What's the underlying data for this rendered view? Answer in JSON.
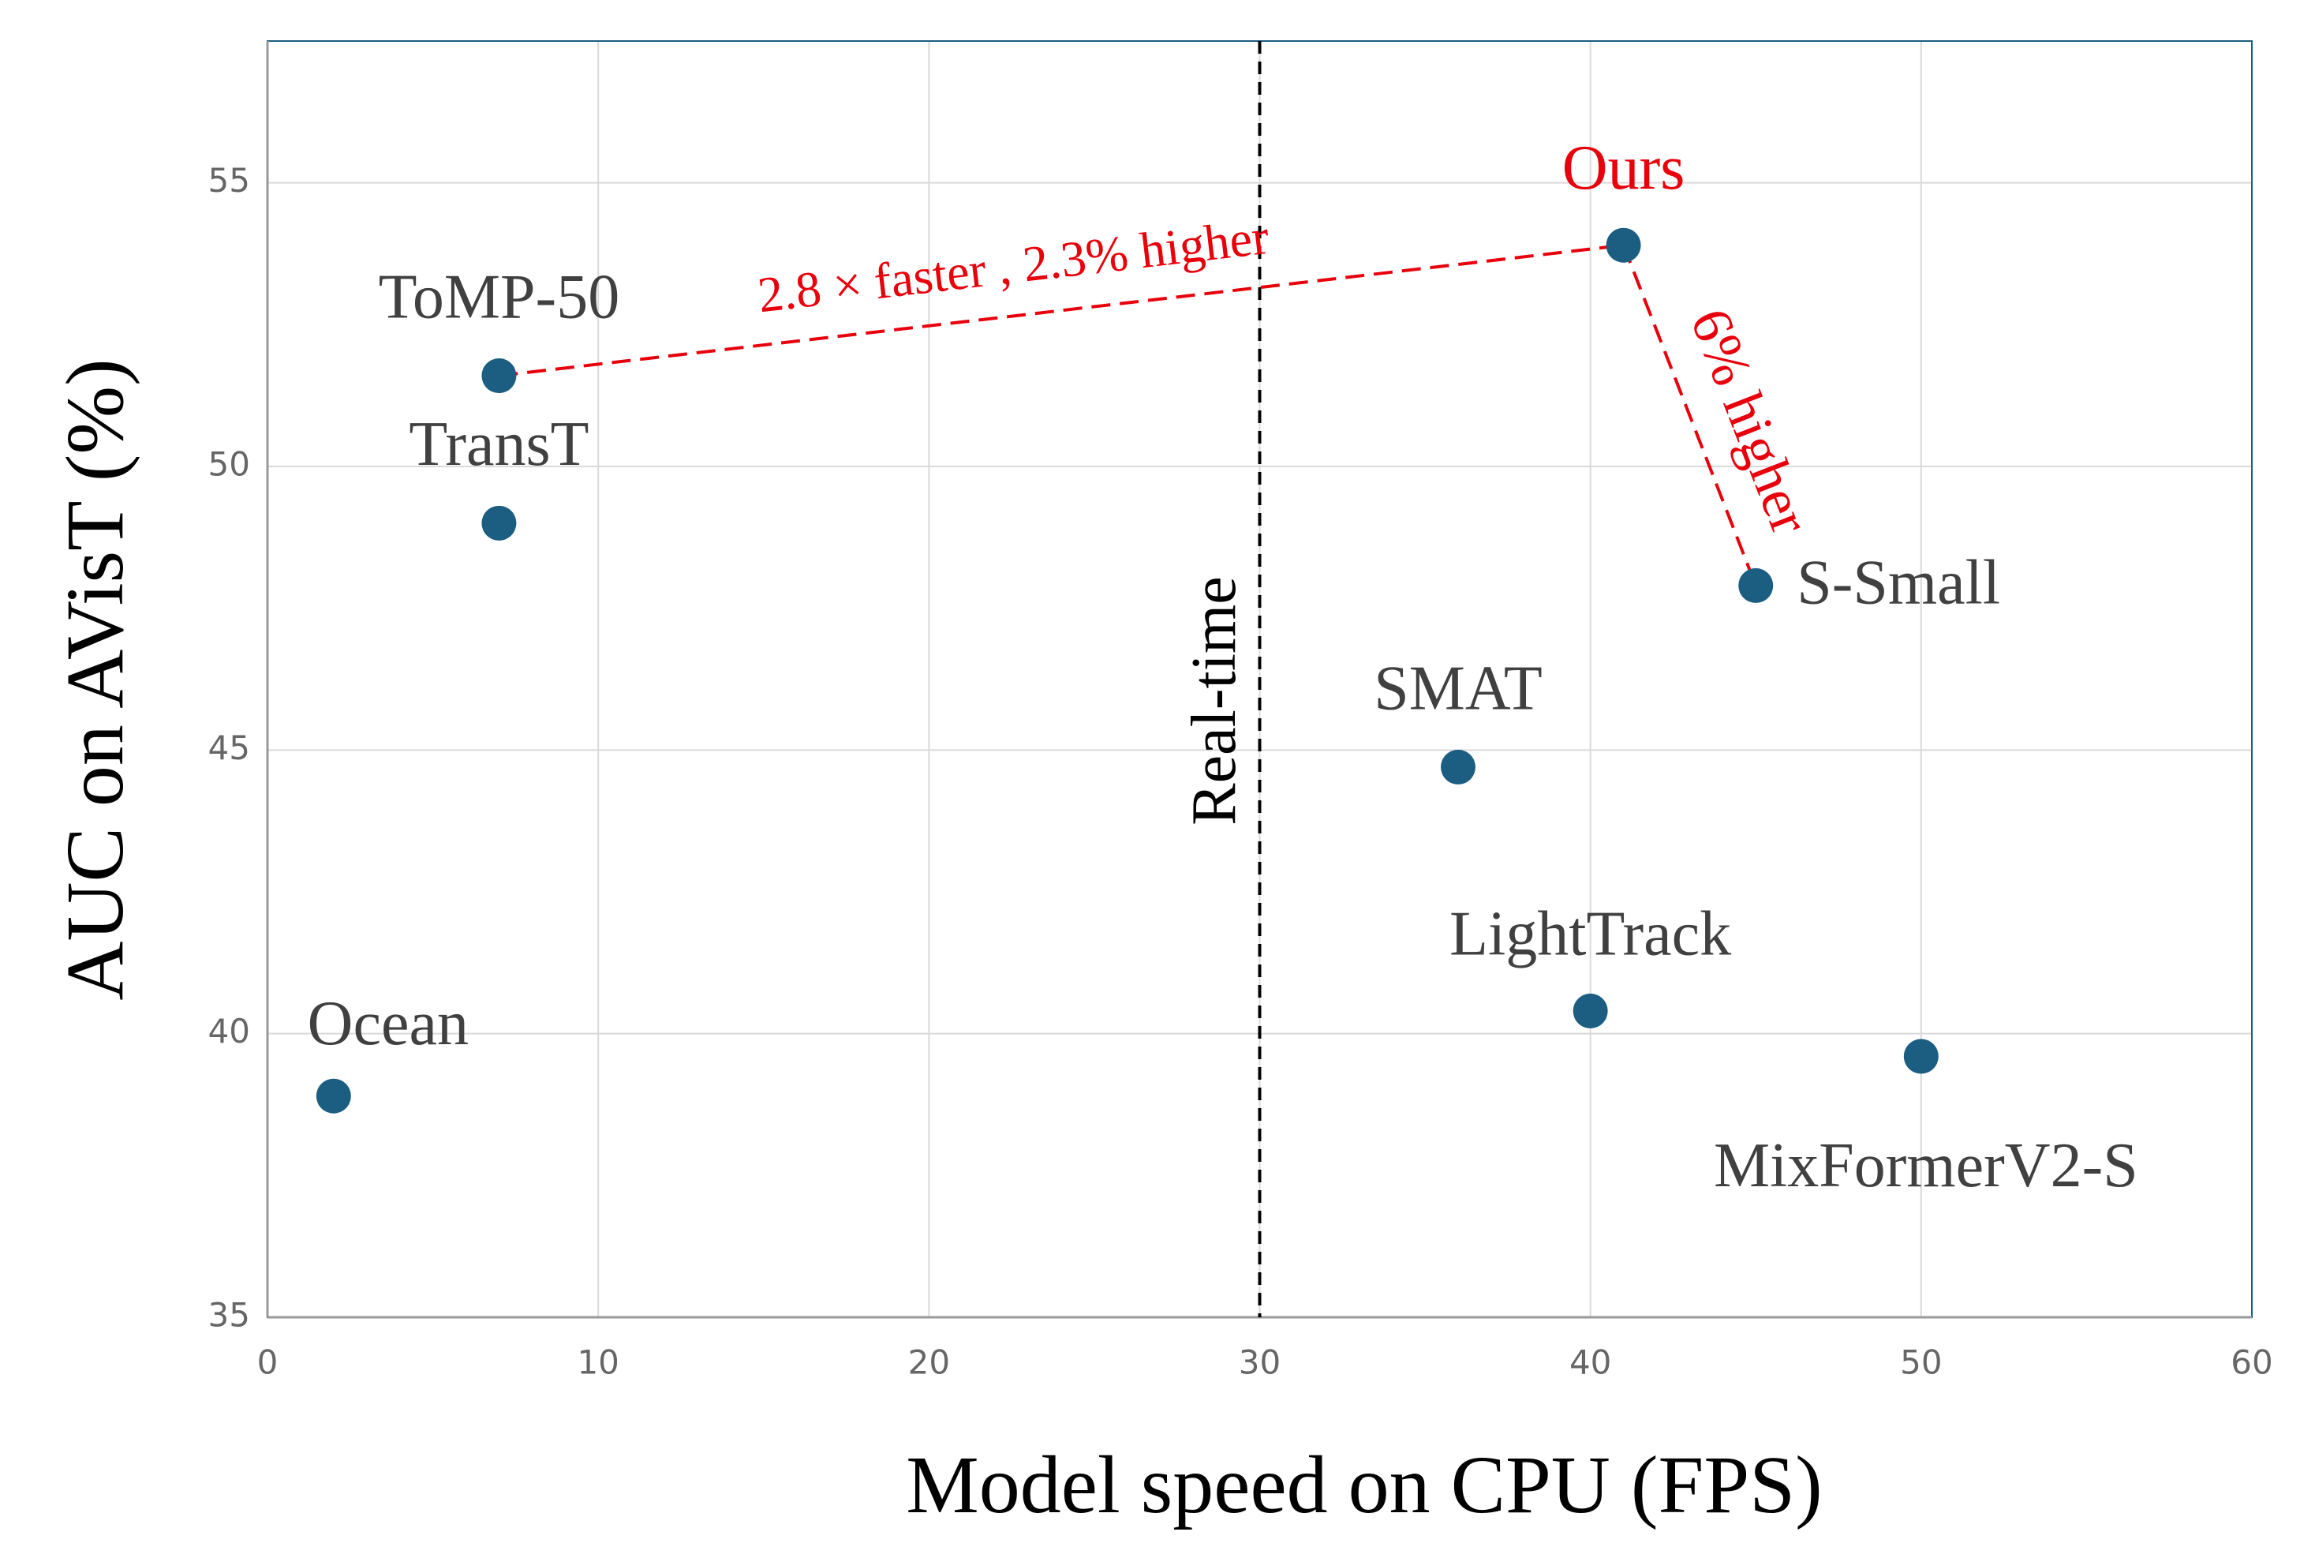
{
  "chart_data": {
    "type": "scatter",
    "x_label": "Model speed on CPU (FPS)",
    "y_label": "AUC on AVisT (%)",
    "xlim": [
      0,
      60
    ],
    "xticks": [
      0,
      10,
      20,
      30,
      40,
      50,
      60
    ],
    "ylim": [
      35,
      57.5
    ],
    "yticks": [
      35,
      40,
      45,
      50,
      55
    ],
    "grid": true,
    "series": [
      {
        "color": "#1b5e82",
        "labels": [
          "Ocean",
          "ToMP-50",
          "TransT",
          "SMAT",
          "LightTrack",
          "MixFormerV2-S",
          "S-Small",
          "Ours"
        ],
        "x": [
          2,
          7,
          7,
          36,
          40,
          50,
          45,
          41
        ],
        "values": [
          38.9,
          51.6,
          49.0,
          44.7,
          40.4,
          39.6,
          47.9,
          53.9
        ]
      }
    ],
    "reference_line": {
      "x": 30,
      "label": "Real-time"
    },
    "annotation_color": "#e8000b",
    "annotations": [
      "2.8 × faster , 2.3% higher",
      "6% higher"
    ]
  }
}
